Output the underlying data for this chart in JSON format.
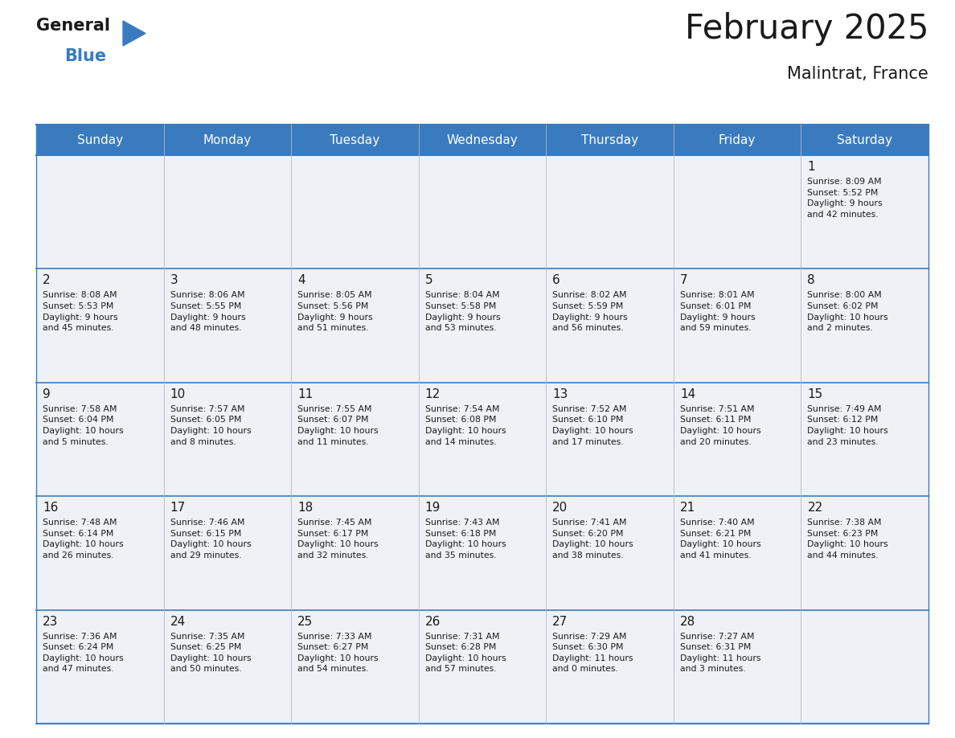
{
  "title": "February 2025",
  "subtitle": "Malintrat, France",
  "header_bg": "#3a7bbf",
  "header_text_color": "#ffffff",
  "cell_bg": "#eef2f7",
  "day_headers": [
    "Sunday",
    "Monday",
    "Tuesday",
    "Wednesday",
    "Thursday",
    "Friday",
    "Saturday"
  ],
  "logo_text1": "General",
  "logo_text2": "Blue",
  "logo_color1": "#1a1a1a",
  "logo_color2": "#3a7bbf",
  "triangle_color": "#3a7bbf",
  "line_color": "#3a7bbf",
  "title_color": "#1a1a1a",
  "text_color": "#1a1a1a",
  "weeks": [
    [
      {
        "day": "",
        "info": ""
      },
      {
        "day": "",
        "info": ""
      },
      {
        "day": "",
        "info": ""
      },
      {
        "day": "",
        "info": ""
      },
      {
        "day": "",
        "info": ""
      },
      {
        "day": "",
        "info": ""
      },
      {
        "day": "1",
        "info": "Sunrise: 8:09 AM\nSunset: 5:52 PM\nDaylight: 9 hours\nand 42 minutes."
      }
    ],
    [
      {
        "day": "2",
        "info": "Sunrise: 8:08 AM\nSunset: 5:53 PM\nDaylight: 9 hours\nand 45 minutes."
      },
      {
        "day": "3",
        "info": "Sunrise: 8:06 AM\nSunset: 5:55 PM\nDaylight: 9 hours\nand 48 minutes."
      },
      {
        "day": "4",
        "info": "Sunrise: 8:05 AM\nSunset: 5:56 PM\nDaylight: 9 hours\nand 51 minutes."
      },
      {
        "day": "5",
        "info": "Sunrise: 8:04 AM\nSunset: 5:58 PM\nDaylight: 9 hours\nand 53 minutes."
      },
      {
        "day": "6",
        "info": "Sunrise: 8:02 AM\nSunset: 5:59 PM\nDaylight: 9 hours\nand 56 minutes."
      },
      {
        "day": "7",
        "info": "Sunrise: 8:01 AM\nSunset: 6:01 PM\nDaylight: 9 hours\nand 59 minutes."
      },
      {
        "day": "8",
        "info": "Sunrise: 8:00 AM\nSunset: 6:02 PM\nDaylight: 10 hours\nand 2 minutes."
      }
    ],
    [
      {
        "day": "9",
        "info": "Sunrise: 7:58 AM\nSunset: 6:04 PM\nDaylight: 10 hours\nand 5 minutes."
      },
      {
        "day": "10",
        "info": "Sunrise: 7:57 AM\nSunset: 6:05 PM\nDaylight: 10 hours\nand 8 minutes."
      },
      {
        "day": "11",
        "info": "Sunrise: 7:55 AM\nSunset: 6:07 PM\nDaylight: 10 hours\nand 11 minutes."
      },
      {
        "day": "12",
        "info": "Sunrise: 7:54 AM\nSunset: 6:08 PM\nDaylight: 10 hours\nand 14 minutes."
      },
      {
        "day": "13",
        "info": "Sunrise: 7:52 AM\nSunset: 6:10 PM\nDaylight: 10 hours\nand 17 minutes."
      },
      {
        "day": "14",
        "info": "Sunrise: 7:51 AM\nSunset: 6:11 PM\nDaylight: 10 hours\nand 20 minutes."
      },
      {
        "day": "15",
        "info": "Sunrise: 7:49 AM\nSunset: 6:12 PM\nDaylight: 10 hours\nand 23 minutes."
      }
    ],
    [
      {
        "day": "16",
        "info": "Sunrise: 7:48 AM\nSunset: 6:14 PM\nDaylight: 10 hours\nand 26 minutes."
      },
      {
        "day": "17",
        "info": "Sunrise: 7:46 AM\nSunset: 6:15 PM\nDaylight: 10 hours\nand 29 minutes."
      },
      {
        "day": "18",
        "info": "Sunrise: 7:45 AM\nSunset: 6:17 PM\nDaylight: 10 hours\nand 32 minutes."
      },
      {
        "day": "19",
        "info": "Sunrise: 7:43 AM\nSunset: 6:18 PM\nDaylight: 10 hours\nand 35 minutes."
      },
      {
        "day": "20",
        "info": "Sunrise: 7:41 AM\nSunset: 6:20 PM\nDaylight: 10 hours\nand 38 minutes."
      },
      {
        "day": "21",
        "info": "Sunrise: 7:40 AM\nSunset: 6:21 PM\nDaylight: 10 hours\nand 41 minutes."
      },
      {
        "day": "22",
        "info": "Sunrise: 7:38 AM\nSunset: 6:23 PM\nDaylight: 10 hours\nand 44 minutes."
      }
    ],
    [
      {
        "day": "23",
        "info": "Sunrise: 7:36 AM\nSunset: 6:24 PM\nDaylight: 10 hours\nand 47 minutes."
      },
      {
        "day": "24",
        "info": "Sunrise: 7:35 AM\nSunset: 6:25 PM\nDaylight: 10 hours\nand 50 minutes."
      },
      {
        "day": "25",
        "info": "Sunrise: 7:33 AM\nSunset: 6:27 PM\nDaylight: 10 hours\nand 54 minutes."
      },
      {
        "day": "26",
        "info": "Sunrise: 7:31 AM\nSunset: 6:28 PM\nDaylight: 10 hours\nand 57 minutes."
      },
      {
        "day": "27",
        "info": "Sunrise: 7:29 AM\nSunset: 6:30 PM\nDaylight: 11 hours\nand 0 minutes."
      },
      {
        "day": "28",
        "info": "Sunrise: 7:27 AM\nSunset: 6:31 PM\nDaylight: 11 hours\nand 3 minutes."
      },
      {
        "day": "",
        "info": ""
      }
    ]
  ]
}
